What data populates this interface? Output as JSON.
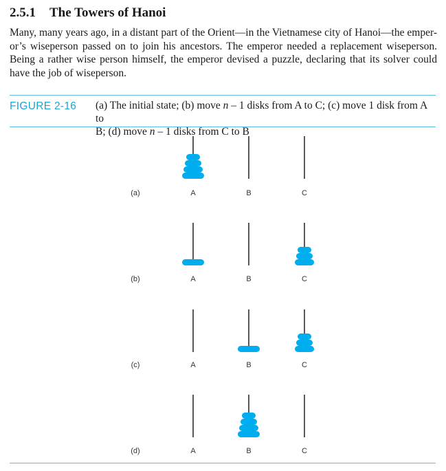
{
  "section": {
    "number": "2.5.1",
    "title": "The Towers of Hanoi"
  },
  "paragraph": {
    "lines": [
      "Many, many years ago, in a distant part of the Orient—in the Vietnamese city of Hanoi—the emper-",
      "or’s wiseperson passed on to join his ancestors. The emperor needed a replacement wiseperson. Being",
      "a rather wise person himself, the emperor devised a puzzle, declaring that its solver could have the job",
      "of wiseperson."
    ]
  },
  "figure": {
    "label": "FIGURE 2-16",
    "caption_line1": {
      "part1": "(a) The initial state; (b) move ",
      "var1": "n",
      "part2": " – 1 disks from A to C; (c) move 1 disk from A to"
    },
    "caption_line2": {
      "part1": "B; (d) move ",
      "var1": "n",
      "part2": " – 1 disks from C to B"
    },
    "peg_labels": [
      "A",
      "B",
      "C"
    ],
    "disk_color": "#00aeef",
    "states": [
      {
        "label": "(a)",
        "pegs": [
          [
            4,
            3,
            2,
            1
          ],
          [],
          []
        ]
      },
      {
        "label": "(b)",
        "pegs": [
          [
            4
          ],
          [],
          [
            3,
            2,
            1
          ]
        ]
      },
      {
        "label": "(c)",
        "pegs": [
          [],
          [
            4
          ],
          [
            3,
            2,
            1
          ]
        ]
      },
      {
        "label": "(d)",
        "pegs": [
          [],
          [
            4,
            3,
            2,
            1
          ],
          []
        ]
      }
    ]
  }
}
